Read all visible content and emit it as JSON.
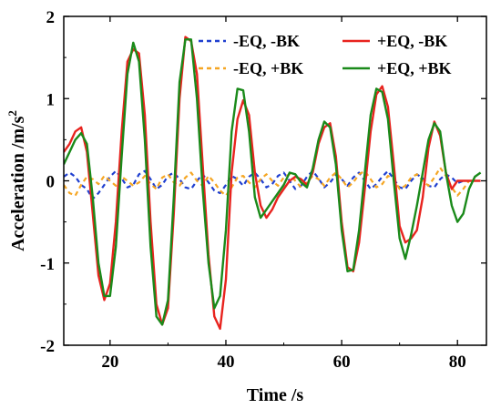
{
  "chart_data": {
    "type": "line",
    "xlabel": "Time /s",
    "ylabel": "Acceleration /m/s",
    "ylabel_superscript": "2",
    "xlim": [
      12,
      85
    ],
    "ylim": [
      -2,
      2
    ],
    "x_ticks": [
      20,
      40,
      60,
      80
    ],
    "x_tick_labels": [
      "20",
      "40",
      "60",
      "80"
    ],
    "y_ticks": [
      -2,
      -1,
      0,
      1,
      2
    ],
    "y_tick_labels": [
      "-2",
      "-1",
      "0",
      "1",
      "2"
    ],
    "grid": false,
    "legend_position": "top-right",
    "series": [
      {
        "name": "-EQ, -BK",
        "color": "#1f3fd0",
        "style": "dashed",
        "points": [
          [
            12,
            0.05
          ],
          [
            13,
            0.1
          ],
          [
            14,
            0.05
          ],
          [
            15,
            -0.05
          ],
          [
            16,
            -0.1
          ],
          [
            17,
            -0.22
          ],
          [
            18,
            -0.15
          ],
          [
            19,
            -0.05
          ],
          [
            20,
            0.05
          ],
          [
            21,
            0.12
          ],
          [
            22,
            0.03
          ],
          [
            23,
            -0.08
          ],
          [
            24,
            -0.05
          ],
          [
            25,
            0.08
          ],
          [
            26,
            0.12
          ],
          [
            27,
            0.02
          ],
          [
            28,
            -0.1
          ],
          [
            29,
            -0.05
          ],
          [
            30,
            0.06
          ],
          [
            31,
            0.1
          ],
          [
            32,
            0.02
          ],
          [
            33,
            -0.08
          ],
          [
            34,
            -0.1
          ],
          [
            35,
            0.0
          ],
          [
            36,
            0.08
          ],
          [
            37,
            -0.02
          ],
          [
            38,
            -0.12
          ],
          [
            39,
            -0.15
          ],
          [
            40,
            -0.05
          ],
          [
            41,
            0.06
          ],
          [
            42,
            0.02
          ],
          [
            43,
            -0.06
          ],
          [
            44,
            0.05
          ],
          [
            45,
            0.1
          ],
          [
            46,
            0.02
          ],
          [
            47,
            -0.08
          ],
          [
            48,
            -0.04
          ],
          [
            49,
            0.06
          ],
          [
            50,
            0.1
          ],
          [
            51,
            0.0
          ],
          [
            52,
            -0.1
          ],
          [
            53,
            -0.06
          ],
          [
            54,
            0.05
          ],
          [
            55,
            0.12
          ],
          [
            56,
            0.03
          ],
          [
            57,
            -0.08
          ],
          [
            58,
            -0.02
          ],
          [
            59,
            0.07
          ],
          [
            60,
            0.02
          ],
          [
            61,
            -0.06
          ],
          [
            62,
            0.04
          ],
          [
            63,
            0.1
          ],
          [
            64,
            0.0
          ],
          [
            65,
            -0.1
          ],
          [
            66,
            -0.04
          ],
          [
            67,
            0.05
          ],
          [
            68,
            0.12
          ],
          [
            69,
            0.02
          ],
          [
            70,
            -0.08
          ],
          [
            71,
            -0.1
          ],
          [
            72,
            0.0
          ],
          [
            73,
            0.08
          ],
          [
            74,
            0.03
          ],
          [
            75,
            -0.06
          ],
          [
            76,
            -0.08
          ],
          [
            77,
            0.02
          ],
          [
            78,
            0.08
          ],
          [
            79,
            0.04
          ],
          [
            80,
            -0.03
          ],
          [
            81,
            0.0
          ]
        ]
      },
      {
        "name": "-EQ, +BK",
        "color": "#f5a623",
        "style": "dashed",
        "points": [
          [
            12,
            -0.05
          ],
          [
            13,
            -0.15
          ],
          [
            14,
            -0.18
          ],
          [
            15,
            -0.05
          ],
          [
            16,
            0.05
          ],
          [
            17,
            0.02
          ],
          [
            18,
            -0.04
          ],
          [
            19,
            0.06
          ],
          [
            20,
            0.0
          ],
          [
            21,
            -0.06
          ],
          [
            22,
            0.05
          ],
          [
            23,
            0.0
          ],
          [
            24,
            -0.06
          ],
          [
            25,
            -0.02
          ],
          [
            26,
            0.06
          ],
          [
            27,
            -0.04
          ],
          [
            28,
            -0.1
          ],
          [
            29,
            0.04
          ],
          [
            30,
            0.08
          ],
          [
            31,
            -0.02
          ],
          [
            32,
            -0.06
          ],
          [
            33,
            0.04
          ],
          [
            34,
            0.1
          ],
          [
            35,
            0.0
          ],
          [
            36,
            -0.06
          ],
          [
            37,
            0.06
          ],
          [
            38,
            -0.02
          ],
          [
            39,
            -0.12
          ],
          [
            40,
            -0.18
          ],
          [
            41,
            -0.08
          ],
          [
            42,
            0.04
          ],
          [
            43,
            0.06
          ],
          [
            44,
            -0.02
          ],
          [
            45,
            -0.08
          ],
          [
            46,
            0.02
          ],
          [
            47,
            0.08
          ],
          [
            48,
            0.0
          ],
          [
            49,
            -0.06
          ],
          [
            50,
            0.04
          ],
          [
            51,
            0.08
          ],
          [
            52,
            0.0
          ],
          [
            53,
            -0.08
          ],
          [
            54,
            -0.02
          ],
          [
            55,
            0.06
          ],
          [
            56,
            0.02
          ],
          [
            57,
            -0.06
          ],
          [
            58,
            0.04
          ],
          [
            59,
            0.1
          ],
          [
            60,
            0.02
          ],
          [
            61,
            -0.08
          ],
          [
            62,
            -0.02
          ],
          [
            63,
            0.08
          ],
          [
            64,
            0.12
          ],
          [
            65,
            0.02
          ],
          [
            66,
            -0.08
          ],
          [
            67,
            -0.04
          ],
          [
            68,
            0.06
          ],
          [
            69,
            0.02
          ],
          [
            70,
            -0.1
          ],
          [
            71,
            -0.06
          ],
          [
            72,
            0.04
          ],
          [
            73,
            0.08
          ],
          [
            74,
            0.0
          ],
          [
            75,
            -0.06
          ],
          [
            76,
            0.04
          ],
          [
            77,
            0.16
          ],
          [
            78,
            0.06
          ],
          [
            79,
            -0.08
          ],
          [
            80,
            -0.18
          ],
          [
            81,
            -0.1
          ],
          [
            82,
            0.0
          ]
        ]
      },
      {
        "name": "+EQ, -BK",
        "color": "#e8231e",
        "style": "solid",
        "points": [
          [
            12,
            0.35
          ],
          [
            13,
            0.45
          ],
          [
            14,
            0.6
          ],
          [
            15,
            0.65
          ],
          [
            16,
            0.35
          ],
          [
            17,
            -0.4
          ],
          [
            18,
            -1.15
          ],
          [
            19,
            -1.45
          ],
          [
            20,
            -1.25
          ],
          [
            21,
            -0.5
          ],
          [
            22,
            0.6
          ],
          [
            23,
            1.45
          ],
          [
            24,
            1.6
          ],
          [
            25,
            1.55
          ],
          [
            26,
            0.8
          ],
          [
            27,
            -0.5
          ],
          [
            28,
            -1.5
          ],
          [
            29,
            -1.75
          ],
          [
            30,
            -1.55
          ],
          [
            31,
            -0.4
          ],
          [
            32,
            1.0
          ],
          [
            33,
            1.75
          ],
          [
            34,
            1.7
          ],
          [
            35,
            1.3
          ],
          [
            36,
            0.2
          ],
          [
            37,
            -0.9
          ],
          [
            38,
            -1.65
          ],
          [
            39,
            -1.8
          ],
          [
            40,
            -1.2
          ],
          [
            41,
            0.1
          ],
          [
            42,
            0.75
          ],
          [
            43,
            0.98
          ],
          [
            44,
            0.8
          ],
          [
            45,
            0.1
          ],
          [
            46,
            -0.3
          ],
          [
            47,
            -0.45
          ],
          [
            48,
            -0.35
          ],
          [
            49,
            -0.2
          ],
          [
            50,
            -0.1
          ],
          [
            51,
            0.0
          ],
          [
            52,
            0.05
          ],
          [
            53,
            0.02
          ],
          [
            54,
            -0.05
          ],
          [
            55,
            0.1
          ],
          [
            56,
            0.45
          ],
          [
            57,
            0.65
          ],
          [
            58,
            0.7
          ],
          [
            59,
            0.3
          ],
          [
            60,
            -0.5
          ],
          [
            61,
            -1.05
          ],
          [
            62,
            -1.1
          ],
          [
            63,
            -0.75
          ],
          [
            64,
            -0.1
          ],
          [
            65,
            0.6
          ],
          [
            66,
            1.05
          ],
          [
            67,
            1.15
          ],
          [
            68,
            0.9
          ],
          [
            69,
            0.2
          ],
          [
            70,
            -0.55
          ],
          [
            71,
            -0.75
          ],
          [
            72,
            -0.7
          ],
          [
            73,
            -0.6
          ],
          [
            74,
            -0.2
          ],
          [
            75,
            0.4
          ],
          [
            76,
            0.72
          ],
          [
            77,
            0.55
          ],
          [
            78,
            0.1
          ],
          [
            79,
            -0.1
          ],
          [
            80,
            0.0
          ],
          [
            81,
            0.0
          ],
          [
            82,
            0.0
          ],
          [
            83,
            0.0
          ],
          [
            84,
            0.0
          ]
        ]
      },
      {
        "name": "+EQ, +BK",
        "color": "#1a8a1a",
        "style": "solid",
        "points": [
          [
            12,
            0.2
          ],
          [
            13,
            0.35
          ],
          [
            14,
            0.5
          ],
          [
            15,
            0.58
          ],
          [
            16,
            0.45
          ],
          [
            17,
            -0.2
          ],
          [
            18,
            -1.0
          ],
          [
            19,
            -1.4
          ],
          [
            20,
            -1.4
          ],
          [
            21,
            -0.8
          ],
          [
            22,
            0.3
          ],
          [
            23,
            1.3
          ],
          [
            24,
            1.68
          ],
          [
            25,
            1.45
          ],
          [
            26,
            0.5
          ],
          [
            27,
            -0.8
          ],
          [
            28,
            -1.65
          ],
          [
            29,
            -1.75
          ],
          [
            30,
            -1.45
          ],
          [
            31,
            -0.2
          ],
          [
            32,
            1.2
          ],
          [
            33,
            1.72
          ],
          [
            34,
            1.72
          ],
          [
            35,
            1.0
          ],
          [
            36,
            -0.1
          ],
          [
            37,
            -1.0
          ],
          [
            38,
            -1.55
          ],
          [
            39,
            -1.4
          ],
          [
            40,
            -0.6
          ],
          [
            41,
            0.6
          ],
          [
            42,
            1.12
          ],
          [
            43,
            1.1
          ],
          [
            44,
            0.6
          ],
          [
            45,
            -0.2
          ],
          [
            46,
            -0.45
          ],
          [
            47,
            -0.35
          ],
          [
            48,
            -0.25
          ],
          [
            49,
            -0.15
          ],
          [
            50,
            -0.05
          ],
          [
            51,
            0.1
          ],
          [
            52,
            0.08
          ],
          [
            53,
            -0.02
          ],
          [
            54,
            -0.08
          ],
          [
            55,
            0.15
          ],
          [
            56,
            0.5
          ],
          [
            57,
            0.72
          ],
          [
            58,
            0.65
          ],
          [
            59,
            0.2
          ],
          [
            60,
            -0.6
          ],
          [
            61,
            -1.1
          ],
          [
            62,
            -1.08
          ],
          [
            63,
            -0.6
          ],
          [
            64,
            0.1
          ],
          [
            65,
            0.8
          ],
          [
            66,
            1.12
          ],
          [
            67,
            1.08
          ],
          [
            68,
            0.75
          ],
          [
            69,
            0.0
          ],
          [
            70,
            -0.7
          ],
          [
            71,
            -0.95
          ],
          [
            72,
            -0.65
          ],
          [
            73,
            -0.3
          ],
          [
            74,
            0.1
          ],
          [
            75,
            0.5
          ],
          [
            76,
            0.7
          ],
          [
            77,
            0.6
          ],
          [
            78,
            0.1
          ],
          [
            79,
            -0.3
          ],
          [
            80,
            -0.5
          ],
          [
            81,
            -0.4
          ],
          [
            82,
            -0.1
          ],
          [
            83,
            0.05
          ],
          [
            84,
            0.1
          ]
        ]
      }
    ]
  }
}
